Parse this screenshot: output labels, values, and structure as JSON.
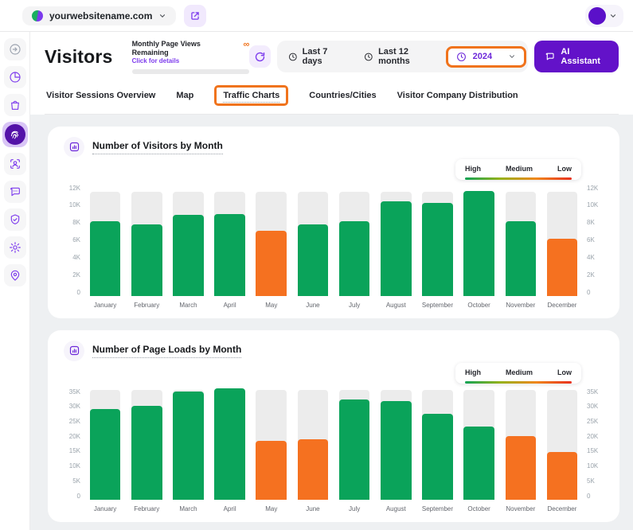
{
  "topbar": {
    "site_name": "yourwebsitename.com"
  },
  "header": {
    "title": "Visitors",
    "quota_label": "Monthly Page Views Remaining",
    "quota_link": "Click for details",
    "quota_value": "∞",
    "last7_label": "Last 7 days",
    "last12_label": "Last 12 months",
    "year_label": "2024",
    "ai_label": "AI Assistant"
  },
  "tabs": [
    {
      "label": "Visitor Sessions Overview",
      "name": "visitor-sessions-overview",
      "highlight": false
    },
    {
      "label": "Map",
      "name": "map",
      "highlight": false
    },
    {
      "label": "Traffic Charts",
      "name": "traffic-charts",
      "highlight": true
    },
    {
      "label": "Countries/Cities",
      "name": "countries-cities",
      "highlight": false
    },
    {
      "label": "Visitor Company Distribution",
      "name": "visitor-company-distribution",
      "highlight": false
    }
  ],
  "legend": {
    "high": "High",
    "medium": "Medium",
    "low": "Low"
  },
  "colors": {
    "high": "#0aa35a",
    "medium": "#f57120",
    "track": "#ececec"
  },
  "chart_data": [
    {
      "type": "bar",
      "title": "Number of Visitors by Month",
      "categories": [
        "January",
        "February",
        "March",
        "April",
        "May",
        "June",
        "July",
        "August",
        "September",
        "October",
        "November",
        "December"
      ],
      "values": [
        8000,
        7700,
        8700,
        8800,
        7000,
        7700,
        8000,
        10200,
        10000,
        11300,
        8000,
        6100
      ],
      "levels": [
        "high",
        "high",
        "high",
        "high",
        "medium",
        "high",
        "high",
        "high",
        "high",
        "high",
        "high",
        "medium"
      ],
      "track_value": 11200,
      "ylim": [
        0,
        12000
      ],
      "yticks": [
        "12K",
        "10K",
        "8K",
        "6K",
        "4K",
        "2K",
        "0"
      ],
      "legend_position": "top-right",
      "grid": false
    },
    {
      "type": "bar",
      "title": "Number of Page Loads by Month",
      "categories": [
        "January",
        "February",
        "March",
        "April",
        "May",
        "June",
        "July",
        "August",
        "September",
        "October",
        "November",
        "December"
      ],
      "values": [
        28500,
        29500,
        34000,
        34800,
        18500,
        19000,
        31500,
        31000,
        27000,
        23000,
        20000,
        15000
      ],
      "levels": [
        "high",
        "high",
        "high",
        "high",
        "medium",
        "medium",
        "high",
        "high",
        "high",
        "high",
        "medium",
        "medium"
      ],
      "track_value": 34500,
      "ylim": [
        0,
        35000
      ],
      "yticks": [
        "35K",
        "30K",
        "25K",
        "20K",
        "15K",
        "10K",
        "5K",
        "0"
      ],
      "legend_position": "top-right",
      "grid": false
    }
  ]
}
